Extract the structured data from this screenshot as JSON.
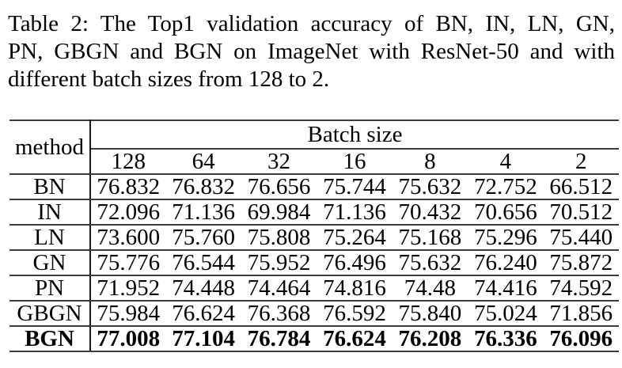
{
  "caption": {
    "lines": [
      "Table 2: The Top1 validation accuracy of BN, IN, LN, GN,",
      "PN, GBGN and BGN on ImageNet with ResNet-50 and with",
      "different batch sizes from 128 to 2."
    ],
    "full_text": "Table 2: The Top1 validation accuracy of BN, IN, LN, GN, PN, GBGN and BGN on ImageNet with ResNet-50 and with different batch sizes from 128 to 2."
  },
  "table": {
    "corner_header": "method",
    "group_header": "Batch size",
    "batch_sizes": [
      "128",
      "64",
      "32",
      "16",
      "8",
      "4",
      "2"
    ],
    "rows": [
      {
        "method": "BN",
        "values": [
          "76.832",
          "76.832",
          "76.656",
          "75.744",
          "75.632",
          "72.752",
          "66.512"
        ]
      },
      {
        "method": "IN",
        "values": [
          "72.096",
          "71.136",
          "69.984",
          "71.136",
          "70.432",
          "70.656",
          "70.512"
        ]
      },
      {
        "method": "LN",
        "values": [
          "73.600",
          "75.760",
          "75.808",
          "75.264",
          "75.168",
          "75.296",
          "75.440"
        ]
      },
      {
        "method": "GN",
        "values": [
          "75.776",
          "76.544",
          "75.952",
          "76.496",
          "75.632",
          "76.240",
          "75.872"
        ]
      },
      {
        "method": "PN",
        "values": [
          "71.952",
          "74.448",
          "74.464",
          "74.816",
          "74.48",
          "74.416",
          "74.592"
        ]
      },
      {
        "method": "GBGN",
        "values": [
          "75.984",
          "76.624",
          "76.368",
          "76.592",
          "75.840",
          "75.024",
          "71.856"
        ]
      },
      {
        "method": "BGN",
        "values": [
          "77.008",
          "77.104",
          "76.784",
          "76.624",
          "76.208",
          "76.336",
          "76.096"
        ]
      }
    ]
  },
  "chart_data": {
    "type": "table",
    "title": "Table 2: The Top1 validation accuracy of BN, IN, LN, GN, PN, GBGN and BGN on ImageNet with ResNet-50 and with different batch sizes from 128 to 2.",
    "columns": [
      "method",
      "128",
      "64",
      "32",
      "16",
      "8",
      "4",
      "2"
    ],
    "group_header": "Batch size",
    "rows": [
      [
        "BN",
        76.832,
        76.832,
        76.656,
        75.744,
        75.632,
        72.752,
        66.512
      ],
      [
        "IN",
        72.096,
        71.136,
        69.984,
        71.136,
        70.432,
        70.656,
        70.512
      ],
      [
        "LN",
        73.6,
        75.76,
        75.808,
        75.264,
        75.168,
        75.296,
        75.44
      ],
      [
        "GN",
        75.776,
        76.544,
        75.952,
        76.496,
        75.632,
        76.24,
        75.872
      ],
      [
        "PN",
        71.952,
        74.448,
        74.464,
        74.816,
        74.48,
        74.416,
        74.592
      ],
      [
        "GBGN",
        75.984,
        76.624,
        76.368,
        76.592,
        75.84,
        75.024,
        71.856
      ],
      [
        "BGN",
        77.008,
        77.104,
        76.784,
        76.624,
        76.208,
        76.336,
        76.096
      ]
    ],
    "bold_row_index": 6
  }
}
